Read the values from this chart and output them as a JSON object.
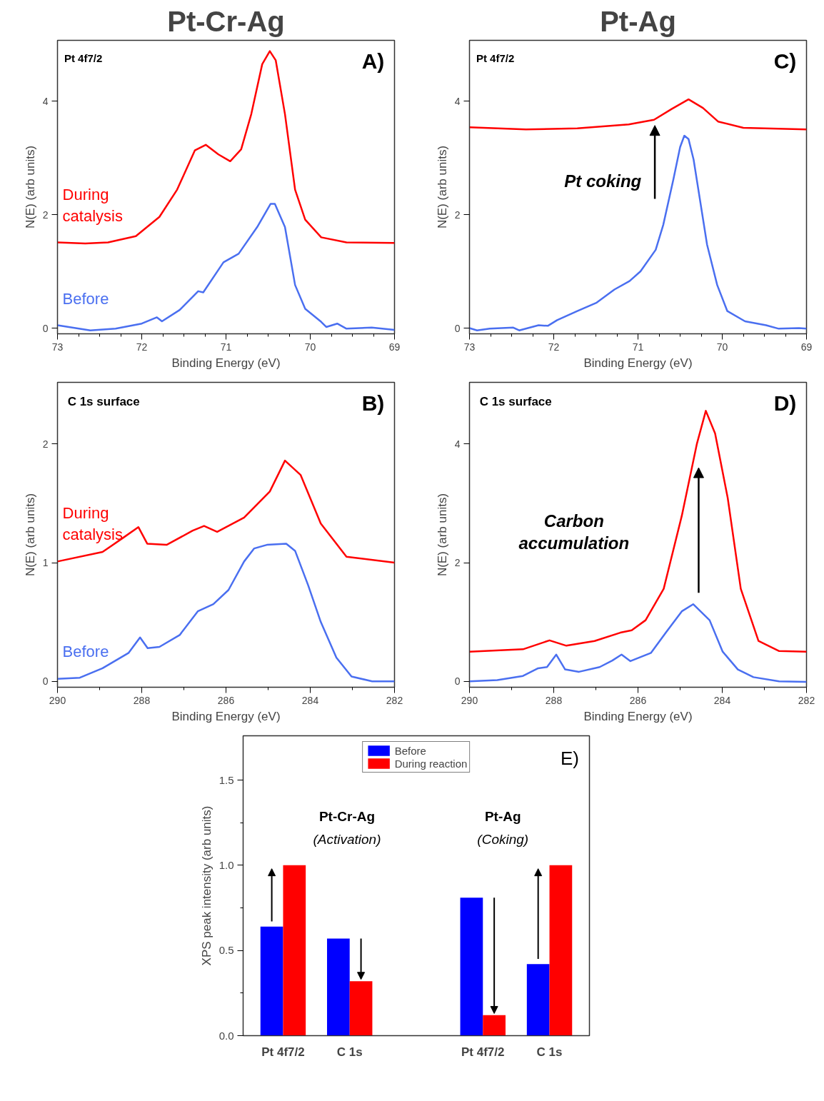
{
  "chart_data": [
    {
      "type": "line",
      "title": "Pt-Cr-Ag",
      "xlabel": "Binding Energy (eV)",
      "ylabel": "N(E) (arb units)",
      "xlim": [
        73,
        69
      ],
      "ylim": [
        -0.1,
        5.07
      ],
      "xticks": [
        73,
        72,
        71,
        70,
        69
      ],
      "yticks": [
        0,
        2,
        4
      ],
      "grid": false,
      "annotations": [
        "Pt 4f7/2",
        "A)"
      ],
      "series": [
        {
          "name": "During catalysis",
          "color": "#ff0000",
          "x": [
            73,
            72.67,
            72.4,
            72.07,
            71.79,
            71.58,
            71.37,
            71.24,
            71.09,
            70.95,
            70.82,
            70.7,
            70.57,
            70.48,
            70.41,
            70.3,
            70.18,
            70.06,
            69.87,
            69.57,
            69.0
          ],
          "values": [
            1.51,
            1.49,
            1.51,
            1.62,
            1.96,
            2.44,
            3.13,
            3.23,
            3.06,
            2.94,
            3.15,
            3.77,
            4.65,
            4.88,
            4.72,
            3.77,
            2.44,
            1.91,
            1.6,
            1.51,
            1.5
          ]
        },
        {
          "name": "Before",
          "color": "#4a6ff0",
          "x": [
            73,
            72.61,
            72.31,
            72.0,
            71.82,
            71.76,
            71.55,
            71.33,
            71.27,
            71.03,
            70.85,
            70.63,
            70.47,
            70.42,
            70.3,
            70.18,
            70.06,
            69.87,
            69.81,
            69.68,
            69.57,
            69.27,
            69.0
          ],
          "values": [
            0.05,
            -0.04,
            -0.01,
            0.08,
            0.19,
            0.12,
            0.32,
            0.65,
            0.63,
            1.16,
            1.31,
            1.78,
            2.19,
            2.19,
            1.78,
            0.76,
            0.34,
            0.11,
            0.02,
            0.08,
            -0.01,
            0.01,
            -0.03
          ]
        }
      ]
    },
    {
      "type": "line",
      "title": "Pt-Ag",
      "xlabel": "Binding Energy (eV)",
      "ylabel": "N(E) (arb units)",
      "xlim": [
        73,
        69
      ],
      "ylim": [
        -0.1,
        5.07
      ],
      "xticks": [
        73,
        72,
        71,
        70,
        69
      ],
      "yticks": [
        0,
        2,
        4
      ],
      "grid": false,
      "annotations": [
        "Pt 4f7/2",
        "C)",
        "Pt coking"
      ],
      "series": [
        {
          "color": "#ff0000",
          "x": [
            73,
            72.33,
            71.72,
            71.11,
            70.81,
            70.6,
            70.4,
            70.23,
            70.05,
            69.75,
            69.0
          ],
          "values": [
            3.54,
            3.5,
            3.52,
            3.59,
            3.67,
            3.86,
            4.03,
            3.88,
            3.64,
            3.53,
            3.5
          ]
        },
        {
          "color": "#4a6ff0",
          "x": [
            73,
            72.91,
            72.76,
            72.48,
            72.41,
            72.18,
            72.07,
            71.96,
            71.72,
            71.49,
            71.28,
            71.1,
            70.97,
            70.79,
            70.7,
            70.58,
            70.5,
            70.45,
            70.4,
            70.34,
            70.18,
            70.06,
            69.94,
            69.73,
            69.48,
            69.33,
            69.09,
            69.0
          ],
          "values": [
            0.0,
            -0.04,
            -0.01,
            0.01,
            -0.04,
            0.05,
            0.04,
            0.14,
            0.3,
            0.45,
            0.68,
            0.83,
            1.0,
            1.38,
            1.82,
            2.62,
            3.19,
            3.39,
            3.33,
            2.97,
            1.47,
            0.76,
            0.3,
            0.12,
            0.05,
            -0.01,
            0.0,
            -0.01
          ]
        }
      ]
    },
    {
      "type": "line",
      "xlabel": "Binding Energy (eV)",
      "ylabel": "N(E) (arb units)",
      "xlim": [
        290,
        282
      ],
      "ylim": [
        -0.05,
        2.52
      ],
      "xticks": [
        290,
        288,
        286,
        284,
        282
      ],
      "yticks": [
        0,
        1,
        2
      ],
      "grid": false,
      "annotations": [
        "C 1s surface",
        "B)"
      ],
      "series": [
        {
          "name": "During catalysis",
          "color": "#ff0000",
          "x": [
            290,
            288.93,
            288.44,
            288.08,
            287.87,
            287.41,
            286.79,
            286.52,
            286.21,
            285.57,
            284.96,
            284.6,
            284.23,
            283.75,
            283.14,
            282
          ],
          "values": [
            1.01,
            1.09,
            1.21,
            1.3,
            1.16,
            1.15,
            1.27,
            1.31,
            1.26,
            1.38,
            1.6,
            1.86,
            1.74,
            1.33,
            1.05,
            1.0
          ]
        },
        {
          "name": "Before",
          "color": "#4a6ff0",
          "x": [
            290,
            289.47,
            288.93,
            288.31,
            288.04,
            287.86,
            287.58,
            287.1,
            286.67,
            286.3,
            285.94,
            285.57,
            285.33,
            285.03,
            284.57,
            284.36,
            284.05,
            283.75,
            283.38,
            283.02,
            282.53,
            282
          ],
          "values": [
            0.02,
            0.03,
            0.11,
            0.24,
            0.37,
            0.28,
            0.29,
            0.39,
            0.59,
            0.65,
            0.77,
            1.01,
            1.12,
            1.15,
            1.16,
            1.1,
            0.81,
            0.5,
            0.2,
            0.04,
            0.0,
            0.0
          ]
        }
      ]
    },
    {
      "type": "line",
      "xlabel": "Binding Energy (eV)",
      "ylabel": "N(E) (arb units)",
      "xlim": [
        290,
        282
      ],
      "ylim": [
        -0.1,
        5.04
      ],
      "xticks": [
        290,
        288,
        286,
        284,
        282
      ],
      "yticks": [
        0,
        2,
        4
      ],
      "grid": false,
      "annotations": [
        "C 1s surface",
        "D)",
        "Carbon accumulation"
      ],
      "series": [
        {
          "color": "#ff0000",
          "x": [
            290,
            288.73,
            288.1,
            287.7,
            287.03,
            286.42,
            286.15,
            285.82,
            285.39,
            284.96,
            284.6,
            284.39,
            284.17,
            283.87,
            283.56,
            283.14,
            282.65,
            282
          ],
          "values": [
            0.5,
            0.54,
            0.69,
            0.6,
            0.68,
            0.82,
            0.86,
            1.03,
            1.56,
            2.79,
            4.01,
            4.56,
            4.18,
            3.09,
            1.56,
            0.68,
            0.51,
            0.5
          ]
        },
        {
          "color": "#4a6ff0",
          "x": [
            290,
            289.34,
            288.73,
            288.37,
            288.16,
            287.94,
            287.73,
            287.4,
            286.91,
            286.61,
            286.39,
            286.18,
            285.69,
            285.33,
            284.96,
            284.69,
            284.3,
            283.99,
            283.63,
            283.26,
            282.65,
            282
          ],
          "values": [
            0.0,
            0.02,
            0.09,
            0.22,
            0.24,
            0.45,
            0.2,
            0.16,
            0.24,
            0.35,
            0.45,
            0.34,
            0.48,
            0.83,
            1.18,
            1.3,
            1.03,
            0.5,
            0.2,
            0.07,
            0.0,
            -0.01
          ]
        }
      ]
    },
    {
      "type": "bar",
      "ylabel": "XPS peak intensity (arb units)",
      "categories": [
        "Pt 4f7/2",
        "C 1s",
        null,
        "Pt 4f7/2",
        "C 1s"
      ],
      "ylim": [
        0,
        1.76
      ],
      "yticks": [
        {
          "value": 0,
          "label": "0.0"
        },
        {
          "value": 0.5,
          "label": "0.5"
        },
        {
          "value": 1.0,
          "label": "1.0"
        },
        {
          "value": 1.5,
          "label": "1.5"
        }
      ],
      "grid": false,
      "legend": "top",
      "annotations": [
        "Pt-Cr-Ag",
        "(Activation)",
        "Pt-Ag",
        "(Coking)",
        "E)"
      ],
      "series": [
        {
          "name": "Before",
          "color": "#0000ff",
          "values": [
            0.64,
            0.57,
            null,
            0.81,
            0.42
          ]
        },
        {
          "name": "During reaction",
          "color": "#ff0000",
          "values": [
            1.0,
            0.32,
            null,
            0.12,
            1.0
          ]
        }
      ]
    }
  ]
}
